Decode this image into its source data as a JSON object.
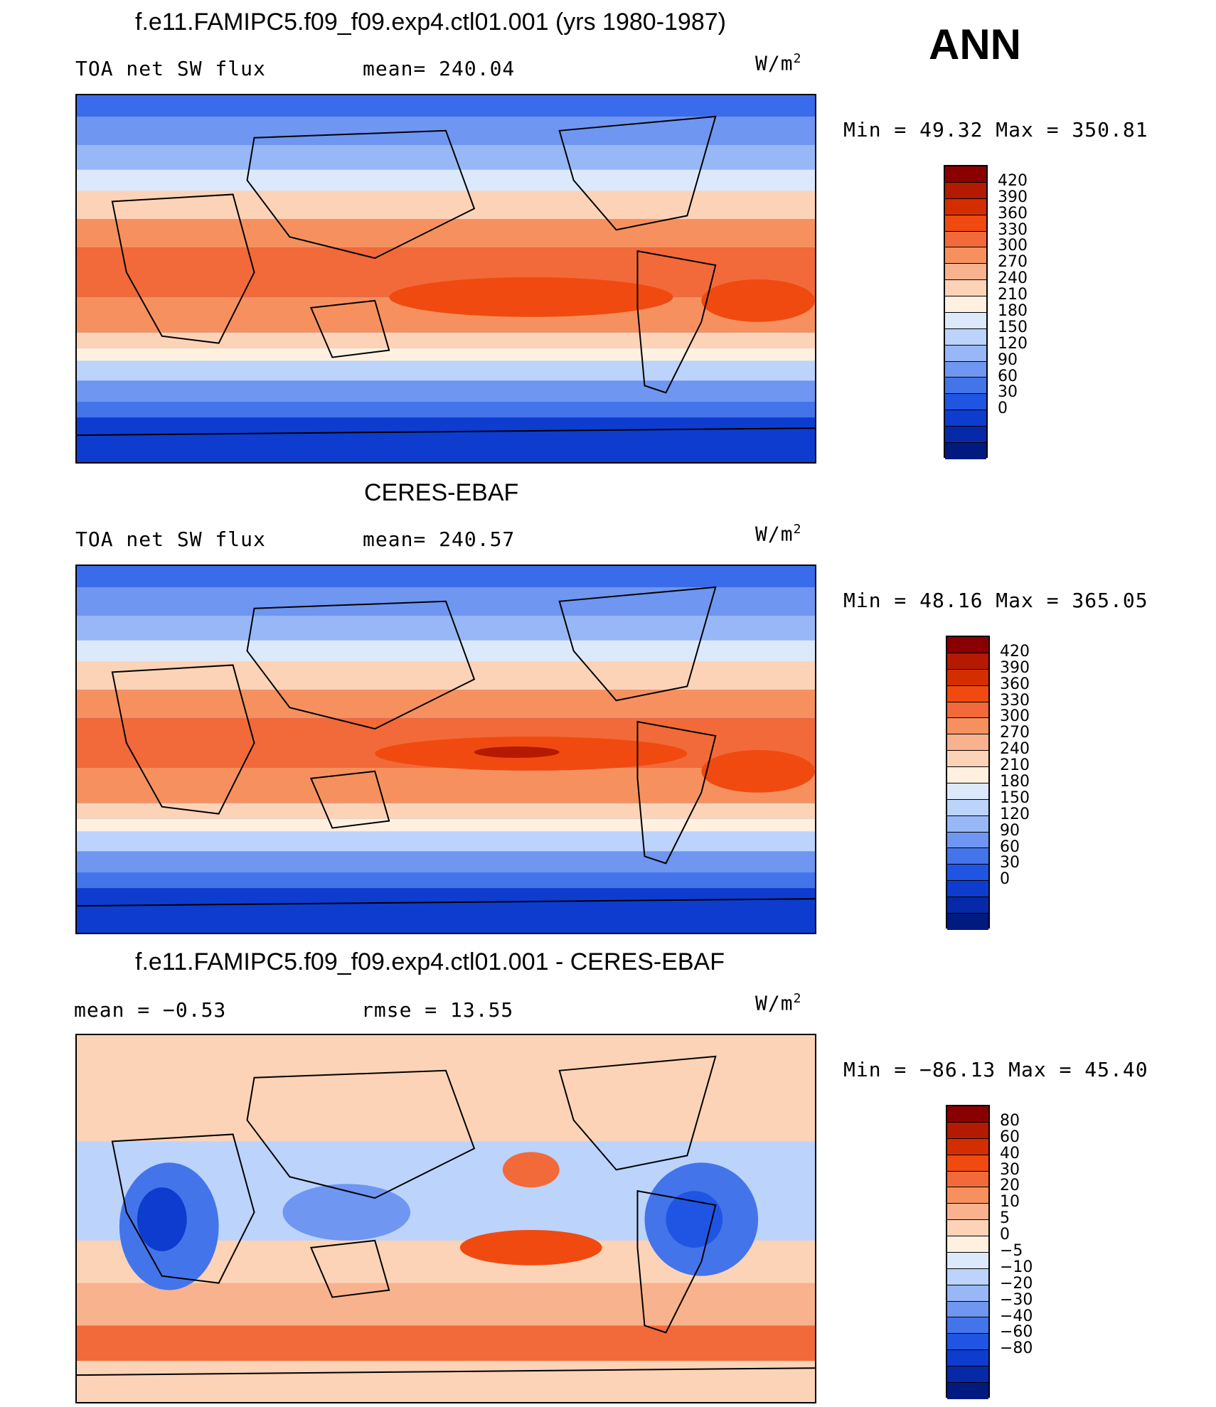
{
  "season": "ANN",
  "unit": "W/m",
  "unit_exp": "2",
  "panels": [
    {
      "title": "f.e11.FAMIPC5.f09_f09.exp4.ctl01.001 (yrs 1980-1987)",
      "left_label": "TOA net SW flux",
      "center_label": "mean= 240.04",
      "minmax": "Min =   49.32 Max = 350.81"
    },
    {
      "title": "CERES-EBAF",
      "left_label": "TOA net SW flux",
      "center_label": "mean= 240.57",
      "minmax": "Min =   48.16 Max = 365.05"
    },
    {
      "title": "f.e11.FAMIPC5.f09_f09.exp4.ctl01.001 - CERES-EBAF",
      "left_label": "mean =   −0.53",
      "center_label": "rmse =   13.55",
      "minmax": "Min = −86.13 Max =   45.40"
    }
  ],
  "chart_data": [
    {
      "type": "heatmap",
      "title": "f.e11.FAMIPC5.f09_f09.exp4.ctl01.001 (yrs 1980-1987)",
      "variable": "TOA net SW flux",
      "units": "W/m2",
      "mean": 240.04,
      "min": 49.32,
      "max": 350.81,
      "colorbar_levels": [
        420,
        390,
        360,
        330,
        300,
        270,
        240,
        210,
        180,
        150,
        120,
        90,
        60,
        30,
        0
      ],
      "colorbar_colors": [
        "#8a0000",
        "#b31a00",
        "#d42e00",
        "#f04a10",
        "#f26a3a",
        "#f6915f",
        "#f8b28d",
        "#fcd3b7",
        "#fff0e0",
        "#dce9fb",
        "#bcd3fb",
        "#97b7f7",
        "#6f96f0",
        "#4474ea",
        "#1f55e2",
        "#0e3cce",
        "#0529a8",
        "#001a80"
      ]
    },
    {
      "type": "heatmap",
      "title": "CERES-EBAF",
      "variable": "TOA net SW flux",
      "units": "W/m2",
      "mean": 240.57,
      "min": 48.16,
      "max": 365.05,
      "colorbar_levels": [
        420,
        390,
        360,
        330,
        300,
        270,
        240,
        210,
        180,
        150,
        120,
        90,
        60,
        30,
        0
      ],
      "colorbar_colors": [
        "#8a0000",
        "#b31a00",
        "#d42e00",
        "#f04a10",
        "#f26a3a",
        "#f6915f",
        "#f8b28d",
        "#fcd3b7",
        "#fff0e0",
        "#dce9fb",
        "#bcd3fb",
        "#97b7f7",
        "#6f96f0",
        "#4474ea",
        "#1f55e2",
        "#0e3cce",
        "#0529a8",
        "#001a80"
      ]
    },
    {
      "type": "heatmap",
      "title": "f.e11.FAMIPC5.f09_f09.exp4.ctl01.001 - CERES-EBAF",
      "units": "W/m2",
      "mean": -0.53,
      "rmse": 13.55,
      "min": -86.13,
      "max": 45.4,
      "colorbar_levels": [
        "80",
        "60",
        "40",
        "30",
        "20",
        "10",
        "5",
        "0",
        "−5",
        "−10",
        "−20",
        "−30",
        "−40",
        "−60",
        "−80"
      ],
      "colorbar_colors": [
        "#8a0000",
        "#b31a00",
        "#d42e00",
        "#f04a10",
        "#f26a3a",
        "#f6915f",
        "#f8b28d",
        "#fcd3b7",
        "#fff0e0",
        "#dce9fb",
        "#bcd3fb",
        "#97b7f7",
        "#6f96f0",
        "#4474ea",
        "#1f55e2",
        "#0e3cce",
        "#0529a8",
        "#001a80"
      ]
    }
  ]
}
